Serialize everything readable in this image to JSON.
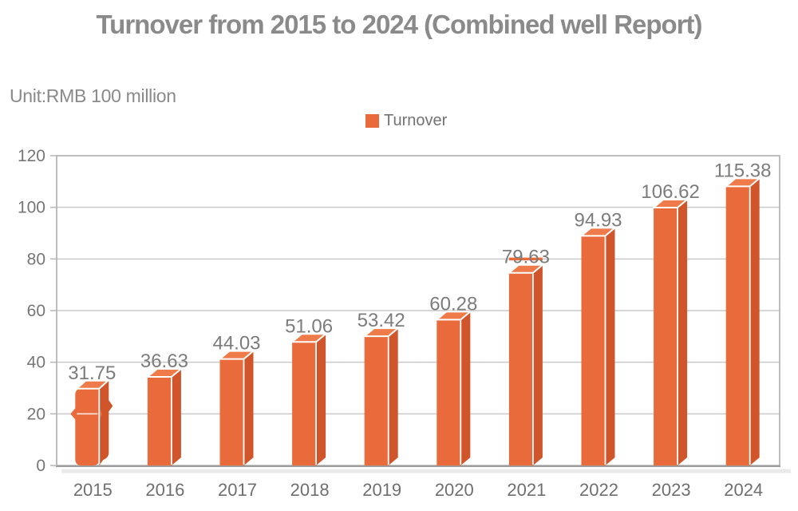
{
  "header": {
    "title": "Turnover from 2015 to 2024 (Combined well Report)"
  },
  "unit_label": "Unit:RMB 100 million",
  "legend": {
    "label": "Turnover",
    "position": "top-center"
  },
  "chart_data": {
    "type": "bar",
    "style": "pseudo-3d-columns",
    "title": "Turnover from 2015 to 2024 (Combined well Report)",
    "unit": "RMB 100 million",
    "categories": [
      "2015",
      "2016",
      "2017",
      "2018",
      "2019",
      "2020",
      "2021",
      "2022",
      "2023",
      "2024"
    ],
    "series": [
      {
        "name": "Turnover",
        "values": [
          31.75,
          36.63,
          44.03,
          51.06,
          53.42,
          60.28,
          79.63,
          94.93,
          106.62,
          115.38
        ],
        "value_labels": [
          "31.75",
          "36.63",
          "44.03",
          "51.06",
          "53.42",
          "60.28",
          "79.63",
          "94.93",
          "106.62",
          "115.38"
        ]
      }
    ],
    "xlabel": "",
    "ylabel": "",
    "ylim": [
      0,
      120
    ],
    "ytick_step": 20,
    "ytick_labels": [
      "0",
      "20",
      "40",
      "60",
      "80",
      "100",
      "120"
    ],
    "grid": "horizontal",
    "legend_position": "top",
    "annotations": {
      "orange_tick_segment": {
        "category": "2021",
        "at_value": 80
      },
      "brace_styled_bar": {
        "category": "2015",
        "pinch_at_value": 20
      }
    },
    "colors": {
      "bar_front": "#e96b3c",
      "bar_side": "#d0552b",
      "bar_top": "#ef7b4a",
      "grid_line": "#c9c9c9",
      "plot_border": "#adadad",
      "axis_shadow": "#d9d9d9",
      "title_text": "#8a8a8a",
      "ytick_text": "#767676",
      "xtick_text": "#6f6f6f",
      "value_text": "#7c7c7c",
      "legend_text": "#737373"
    }
  }
}
